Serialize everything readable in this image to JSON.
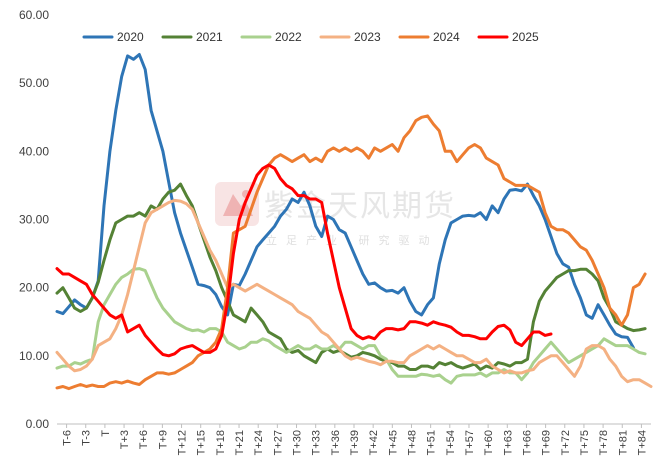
{
  "watermark": {
    "main_text": "紫金天风期货",
    "sub_text": "立足产业 研究驱动",
    "logo_color": "#e06a6a"
  },
  "chart_data": {
    "type": "line",
    "title": "",
    "xlabel": "",
    "ylabel": "",
    "ylim": [
      0,
      60
    ],
    "yticks": [
      "0.00",
      "10.00",
      "20.00",
      "30.00",
      "40.00",
      "50.00",
      "60.00"
    ],
    "grid": false,
    "legend_position": "top",
    "x_tick_labels": [
      "T-6",
      "T-3",
      "T",
      "T+3",
      "T+6",
      "T+9",
      "T+12",
      "T+15",
      "T+18",
      "T+21",
      "T+24",
      "T+27",
      "T+30",
      "T+33",
      "T+36",
      "T+39",
      "T+42",
      "T+45",
      "T+48",
      "T+51",
      "T+54",
      "T+57",
      "T+60",
      "T+63",
      "T+66",
      "T+69",
      "T+72",
      "T+75",
      "T+78",
      "T+81",
      "T+84"
    ],
    "series": [
      {
        "name": "2020",
        "color": "#2e75b6",
        "values": [
          16.5,
          16.2,
          17.2,
          18.2,
          17.5,
          17,
          18.5,
          21,
          32,
          40,
          46,
          51,
          54,
          53.5,
          54.2,
          52,
          46,
          43,
          40,
          35.5,
          31,
          28,
          25.5,
          23,
          20.5,
          20.3,
          20,
          19,
          17.2,
          16,
          20.5,
          20.3,
          22,
          24,
          26,
          27,
          28,
          29,
          30.5,
          31.5,
          33,
          32.5,
          34,
          32,
          29,
          27.5,
          30.5,
          30,
          28.5,
          28,
          26,
          24,
          22,
          20.5,
          20.7,
          20,
          19.5,
          19.6,
          19.2,
          20,
          18,
          16.5,
          16,
          17.5,
          18.5,
          23.5,
          27,
          29.5,
          30,
          30.5,
          30.6,
          30.5,
          31,
          30,
          32,
          31,
          33,
          34.3,
          34.4,
          34.2,
          35.2,
          33.5,
          32,
          30,
          27.5,
          25,
          23.5,
          23,
          20.5,
          18.5,
          16,
          15.5,
          17.5,
          16,
          14.5,
          13.2,
          12.8,
          12.7,
          11.2
        ]
      },
      {
        "name": "2021",
        "color": "#548235",
        "values": [
          19.2,
          20,
          18.5,
          17,
          16.5,
          17,
          18.5,
          20.8,
          24,
          27,
          29.5,
          30,
          30.5,
          30.5,
          31,
          30.5,
          32,
          31.5,
          33,
          34,
          34.3,
          35.2,
          33.5,
          32,
          29.5,
          27,
          24.5,
          22.5,
          20,
          18,
          16,
          15.5,
          15,
          17,
          16,
          15,
          13.5,
          13,
          12.5,
          11,
          10.5,
          10.8,
          10,
          9.5,
          9,
          10.5,
          11,
          10.5,
          10.8,
          10.3,
          9.8,
          10,
          10.5,
          10.3,
          10,
          9.5,
          9.2,
          9,
          8.5,
          8.5,
          8,
          8,
          8.5,
          8.5,
          8.2,
          9,
          8.7,
          9,
          8.5,
          8.2,
          8.5,
          8.8,
          8,
          8.5,
          8.2,
          9,
          8.8,
          8.5,
          9,
          9,
          9.5,
          15,
          18,
          19.5,
          20.5,
          21.5,
          22,
          22.5,
          22.5,
          22.7,
          22.7,
          22,
          21,
          18.5,
          17,
          15,
          14.5,
          14,
          13.7,
          13.8,
          14
        ]
      },
      {
        "name": "2022",
        "color": "#a9d18e",
        "values": [
          8.2,
          8.5,
          8.5,
          9,
          8.8,
          9.2,
          9.5,
          15,
          17.5,
          19,
          20.5,
          21.5,
          22,
          22.7,
          22.8,
          22.5,
          20.5,
          18.5,
          17,
          16,
          15,
          14.5,
          14,
          13.7,
          13.8,
          13.5,
          14,
          14,
          13.5,
          12,
          11.5,
          11,
          11.3,
          12,
          12,
          12.5,
          12.2,
          11.5,
          11,
          10.5,
          11,
          11.5,
          11,
          11,
          11.5,
          11,
          11,
          11.5,
          11,
          12,
          12,
          11.5,
          11,
          11.5,
          11.5,
          10,
          9.5,
          8,
          7,
          7,
          7,
          7,
          7.3,
          7.2,
          7,
          7.2,
          6.5,
          6,
          7,
          7.2,
          7.2,
          7.2,
          7.5,
          7,
          7.5,
          7.5,
          8,
          7.5,
          7.5,
          6.5,
          7.5,
          9,
          10,
          11,
          12,
          11,
          10,
          9,
          9.5,
          10,
          10.5,
          11,
          11.5,
          12.5,
          12,
          11.5,
          11.5,
          11.5,
          11,
          10.5,
          10.3
        ]
      },
      {
        "name": "2023",
        "color": "#f4b183",
        "values": [
          10.5,
          9.5,
          8.5,
          7.8,
          8,
          8.5,
          9.5,
          11.5,
          12,
          12.5,
          14,
          16,
          19,
          22.5,
          26,
          29.5,
          31,
          31.5,
          32,
          32.5,
          32.8,
          32.7,
          32.3,
          31.5,
          29.5,
          27.5,
          25.5,
          24,
          22,
          20,
          20.5,
          20,
          19.5,
          20,
          20.5,
          20,
          19.5,
          19,
          18.5,
          18,
          17.5,
          16.5,
          16,
          15.5,
          14.5,
          13.5,
          13,
          12,
          11,
          10,
          9.5,
          9.8,
          9.5,
          9.2,
          9,
          8.7,
          9.2,
          9.2,
          9,
          9,
          10,
          10.5,
          11,
          11.5,
          11,
          11.5,
          11,
          10.5,
          10,
          10,
          9.5,
          9,
          9,
          9.5,
          8.5,
          8,
          7.5,
          7.8,
          7.5,
          7.5,
          7.8,
          8,
          9,
          9.5,
          10,
          10,
          9,
          8,
          7,
          8.5,
          11,
          11.5,
          11.5,
          11,
          9.5,
          8.5,
          7,
          6.2,
          6.5,
          6.5,
          6,
          5.5
        ]
      },
      {
        "name": "2024",
        "color": "#ed7d31",
        "values": [
          5.3,
          5.5,
          5.2,
          5.5,
          5.8,
          5.5,
          5.7,
          5.5,
          5.5,
          6,
          6.2,
          6,
          6.3,
          6,
          5.8,
          6.5,
          7,
          7.5,
          7.5,
          7.3,
          7.5,
          8,
          8.5,
          9,
          10,
          10.5,
          11,
          12,
          14,
          20,
          28,
          28.5,
          29,
          31.5,
          34,
          36,
          38,
          39,
          39.5,
          39,
          38.5,
          39,
          39.5,
          38.5,
          39,
          38.5,
          40,
          40.5,
          40,
          40.5,
          40,
          40.5,
          40,
          39,
          40.5,
          40,
          40.5,
          41,
          40,
          42,
          43,
          44.5,
          45,
          45.2,
          44,
          43,
          40,
          40,
          38.5,
          39.5,
          40.5,
          41,
          40.5,
          39,
          38.5,
          38,
          36,
          35.5,
          35,
          35,
          35,
          34.5,
          34,
          31,
          29,
          28.5,
          28.5,
          28,
          27,
          26,
          25.5,
          24,
          22,
          20,
          17,
          16,
          14.5,
          16,
          20,
          20.5,
          22
        ]
      },
      {
        "name": "2025",
        "color": "#ff0000",
        "values": [
          22.8,
          22,
          22,
          21.5,
          21,
          20.5,
          19,
          18,
          17,
          16,
          15.5,
          16,
          13.5,
          14,
          14.5,
          13,
          12,
          11,
          10.2,
          10,
          10.3,
          11,
          11.3,
          11.5,
          11,
          10.5,
          10.5,
          11,
          13,
          18,
          25,
          30,
          32.5,
          34.5,
          36.5,
          37.5,
          38,
          37.5,
          36,
          35,
          34.5,
          33.5,
          33.5,
          33,
          33,
          32.5,
          28,
          24,
          20,
          17,
          14,
          13,
          12.5,
          12.8,
          12.5,
          13.5,
          14,
          14,
          13.8,
          14,
          15,
          15,
          14.8,
          14.5,
          15,
          14.7,
          14.5,
          14.2,
          13.5,
          13,
          13,
          12.8,
          12.5,
          12.5,
          13.5,
          14.3,
          14.5,
          13.8,
          12,
          11.5,
          12.5,
          13.5,
          13.5,
          13,
          13.2
        ]
      }
    ]
  }
}
